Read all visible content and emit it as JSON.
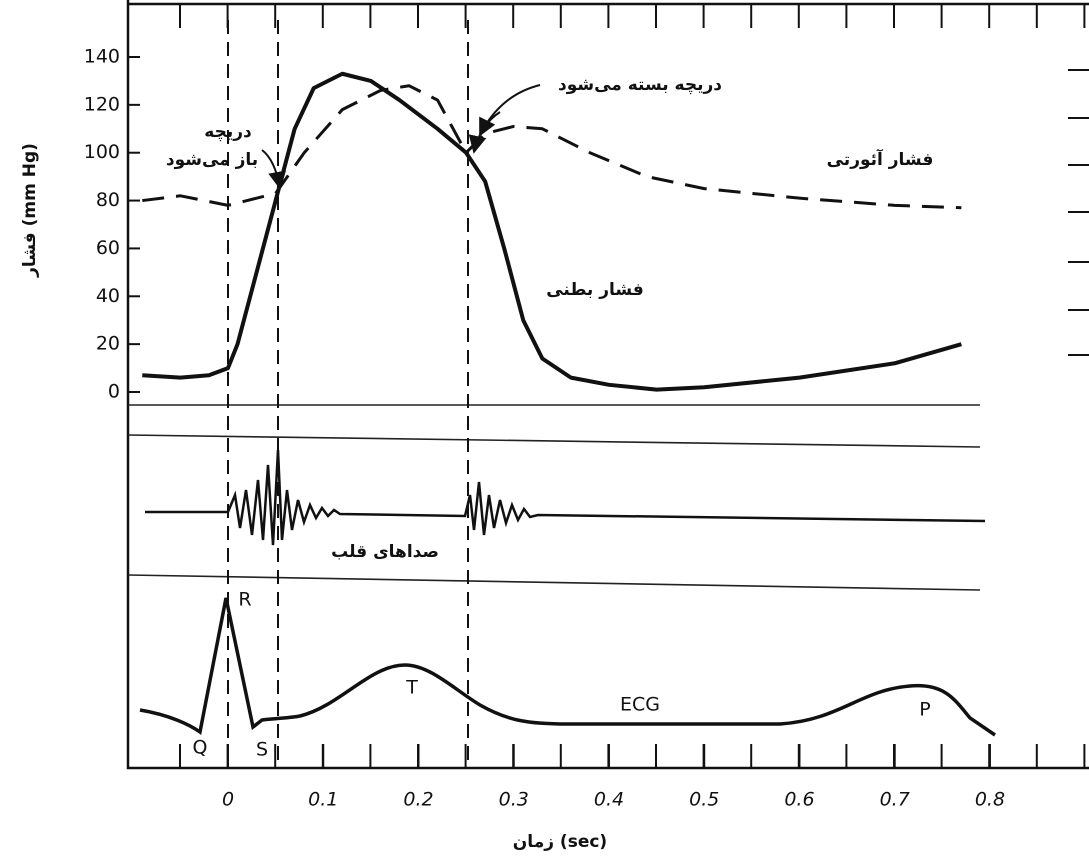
{
  "chart_data": {
    "type": "line",
    "y_label": "فشار (mm Hg)",
    "x_label": "زمان (sec)",
    "xlim": [
      -0.105,
      0.904
    ],
    "ylim": [
      0,
      140
    ],
    "xticks": [
      0,
      0.1,
      0.2,
      0.3,
      0.4,
      0.5,
      0.6,
      0.7,
      0.8
    ],
    "yticks": [
      0,
      20,
      40,
      60,
      80,
      100,
      120,
      140
    ],
    "series": [
      {
        "name": "فشار بطنی",
        "color": "#111111",
        "style": "solid",
        "x": [
          -0.09,
          -0.05,
          -0.02,
          0,
          0.01,
          0.03,
          0.05,
          0.07,
          0.09,
          0.12,
          0.15,
          0.18,
          0.22,
          0.25,
          0.27,
          0.29,
          0.31,
          0.33,
          0.36,
          0.4,
          0.45,
          0.5,
          0.6,
          0.7,
          0.77
        ],
        "values": [
          7,
          6,
          7,
          10,
          20,
          50,
          80,
          110,
          127,
          133,
          130,
          122,
          110,
          100,
          88,
          60,
          30,
          14,
          6,
          3,
          1,
          2,
          6,
          12,
          20
        ]
      },
      {
        "name": "فشار آئورتی",
        "color": "#111111",
        "style": "dashed",
        "x": [
          -0.09,
          -0.05,
          0,
          0.03,
          0.05,
          0.08,
          0.12,
          0.16,
          0.19,
          0.22,
          0.25,
          0.27,
          0.3,
          0.33,
          0.38,
          0.44,
          0.5,
          0.6,
          0.7,
          0.77
        ],
        "values": [
          80,
          82,
          78,
          81,
          83,
          100,
          118,
          126,
          128,
          122,
          100,
          108,
          111,
          110,
          100,
          90,
          85,
          81,
          78,
          77
        ]
      }
    ],
    "annotations": {
      "valve_opens_1": "دریچه",
      "valve_opens_2": "باز می‌شود",
      "valve_closes": "دریچه بسته می‌شود",
      "heart_sounds": "صداهای قلب",
      "ecg": "ECG",
      "r": "R",
      "q": "Q",
      "s": "S",
      "t": "T",
      "p": "P"
    }
  }
}
